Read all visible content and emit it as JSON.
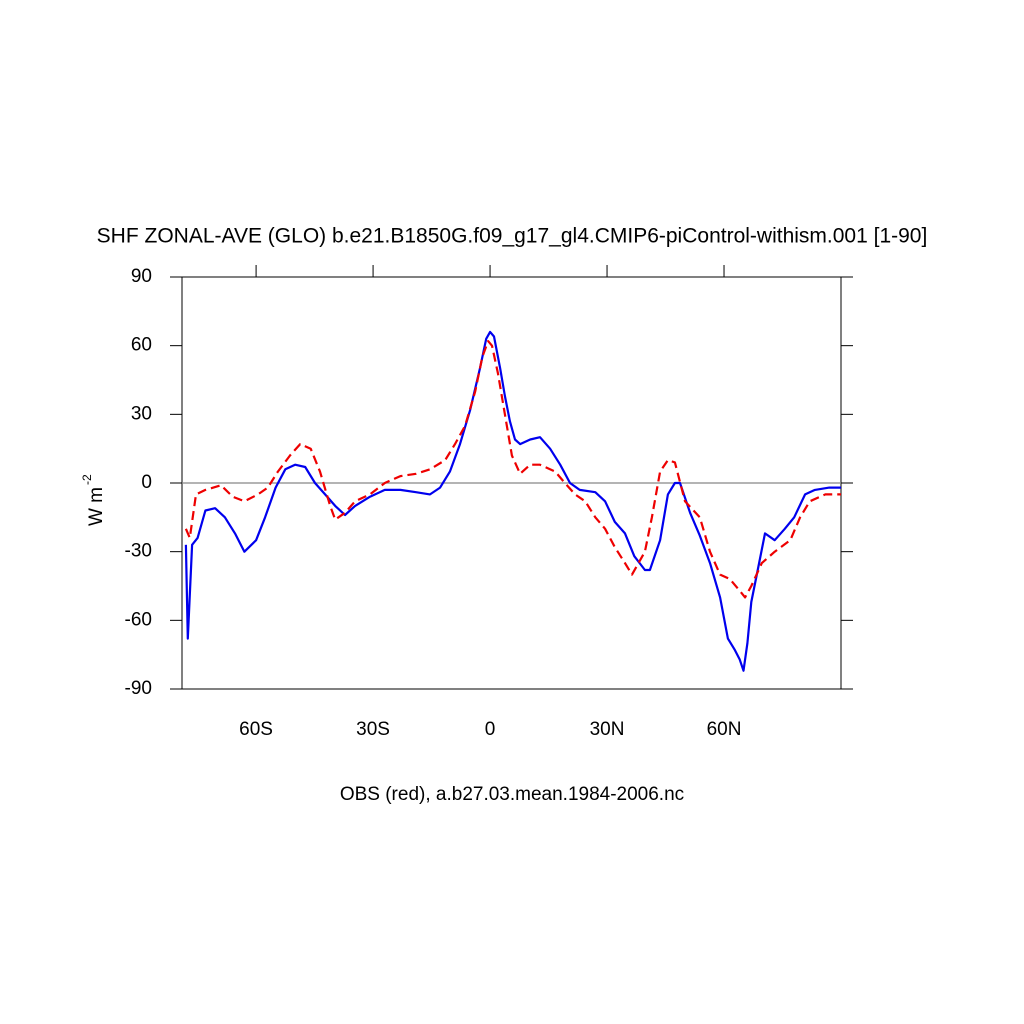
{
  "chart_data": {
    "type": "line",
    "title": "SHF ZONAL-AVE (GLO) b.e21.B1850G.f09_g17_gl4.CMIP6-piControl-withism.001 [1-90]",
    "ylabel": "W m",
    "ylabel_sup": "-2",
    "xlabel": "OBS (red), a.b27.03.mean.1984-2006.nc",
    "xlim": [
      -79,
      90
    ],
    "ylim": [
      -90,
      90
    ],
    "xticks": [
      {
        "value": -60,
        "label": "60S"
      },
      {
        "value": -30,
        "label": "30S"
      },
      0,
      {
        "value": 30,
        "label": "30N"
      },
      {
        "value": 60,
        "label": "60N"
      }
    ],
    "yticks": [
      -90,
      -60,
      -30,
      0,
      30,
      60,
      90
    ],
    "hline": 0,
    "series": [
      {
        "color": "#0000ee",
        "style": "solid",
        "x": [
          -78,
          -77.5,
          -76.4,
          -75,
          -73,
          -70.5,
          -68,
          -65.4,
          -63,
          -60,
          -57.7,
          -55,
          -52.5,
          -50,
          -47.4,
          -44.9,
          -42.3,
          -39.7,
          -37.2,
          -34.6,
          -30.8,
          -27,
          -23,
          -19,
          -15.4,
          -12.8,
          -10.3,
          -7.7,
          -5.1,
          -2.6,
          -1,
          0,
          1,
          2.6,
          3.8,
          5.1,
          6.4,
          7.7,
          10.3,
          12.8,
          15.4,
          18,
          20.5,
          23,
          27,
          29.5,
          32,
          34.6,
          37,
          39.7,
          41,
          43.6,
          45.6,
          47.4,
          48.7,
          51.3,
          53.8,
          56.4,
          59,
          61,
          62.8,
          64,
          65,
          66,
          67,
          69,
          70.5,
          73,
          75.6,
          78,
          80.8,
          83.3,
          87,
          90
        ],
        "values": [
          -27,
          -68,
          -27,
          -24,
          -12,
          -11,
          -15,
          -22,
          -30,
          -25,
          -15,
          -2,
          6,
          8,
          7,
          0,
          -5,
          -10,
          -14,
          -10,
          -6,
          -3,
          -3,
          -4,
          -5,
          -2,
          5,
          17,
          32,
          50,
          63,
          66,
          64,
          50,
          38,
          27,
          19,
          17,
          19,
          20,
          15,
          8,
          0,
          -3,
          -4,
          -8,
          -17,
          -22,
          -32,
          -38,
          -38,
          -25,
          -5,
          0,
          0,
          -13,
          -23,
          -35,
          -50,
          -68,
          -73,
          -77,
          -82,
          -70,
          -52,
          -35,
          -22,
          -25,
          -20,
          -15,
          -5,
          -3,
          -2,
          -2
        ]
      },
      {
        "color": "#ee0000",
        "style": "dashed",
        "x": [
          -78,
          -77,
          -75.4,
          -73,
          -69,
          -66,
          -63,
          -59.5,
          -57,
          -54.4,
          -51.3,
          -48.7,
          -46,
          -43.6,
          -41,
          -39.7,
          -37.2,
          -34.6,
          -30.8,
          -27,
          -23,
          -19,
          -15.4,
          -11.5,
          -9,
          -6.4,
          -3.8,
          -2,
          -0.5,
          0.5,
          2,
          3.8,
          5.6,
          7.7,
          10.3,
          12.8,
          16.7,
          19.2,
          21.8,
          24.4,
          27,
          29.5,
          32,
          34.6,
          36.4,
          39.7,
          41.5,
          43.6,
          45.6,
          47.4,
          50,
          53.8,
          56.4,
          59,
          61.5,
          64,
          65.4,
          67,
          69.7,
          73,
          77,
          79.5,
          82,
          86,
          90
        ],
        "values": [
          -20,
          -24,
          -5,
          -3,
          -1,
          -6,
          -8,
          -5,
          -2,
          5,
          12,
          17,
          15,
          5,
          -10,
          -16,
          -13,
          -8,
          -5,
          0,
          3,
          4,
          6,
          10,
          17,
          25,
          40,
          55,
          62,
          60,
          48,
          30,
          12,
          4,
          8,
          8,
          5,
          0,
          -5,
          -8,
          -15,
          -20,
          -28,
          -35,
          -40,
          -30,
          -15,
          5,
          10,
          9,
          -8,
          -15,
          -30,
          -40,
          -42,
          -47,
          -50,
          -45,
          -35,
          -30,
          -25,
          -15,
          -8,
          -5,
          -5
        ]
      }
    ]
  }
}
